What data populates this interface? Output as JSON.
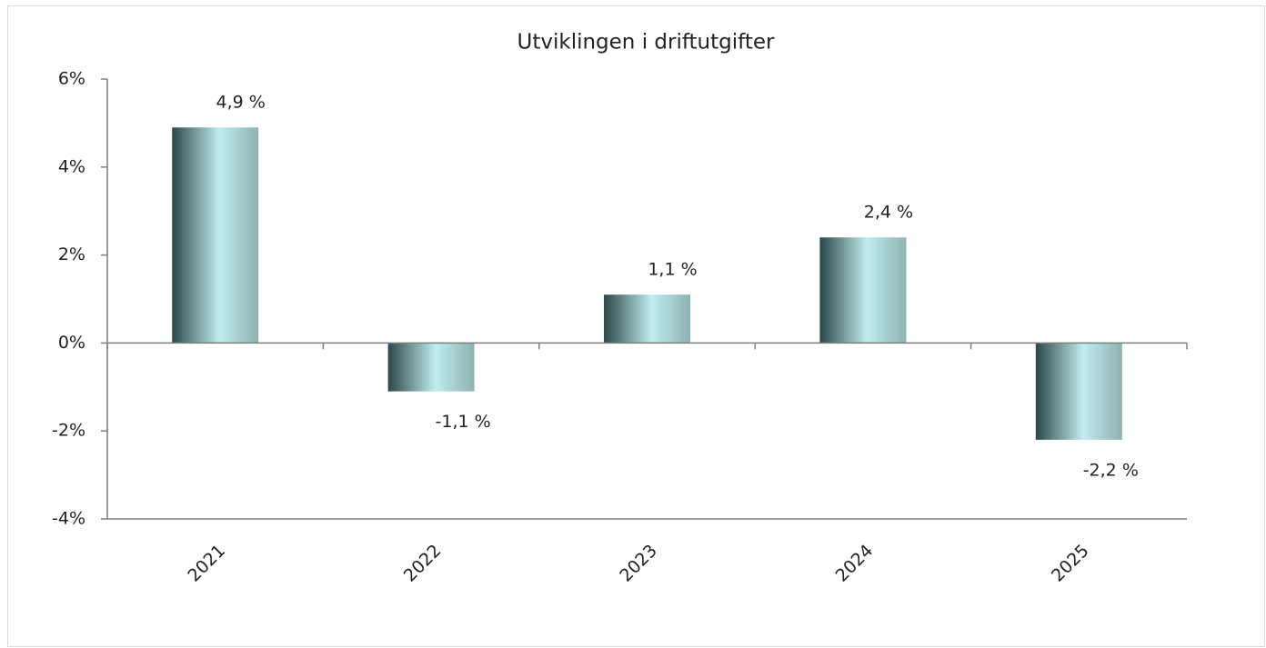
{
  "chart_data": {
    "type": "bar",
    "title": "Utviklingen i driftutgifter",
    "categories": [
      "2021",
      "2022",
      "2023",
      "2024",
      "2025"
    ],
    "values": [
      4.9,
      -1.1,
      1.1,
      2.4,
      -2.2
    ],
    "value_labels": [
      "4,9 %",
      "-1,1 %",
      "1,1 %",
      "2,4 %",
      "-2,2 %"
    ],
    "ylim": [
      -4,
      6
    ],
    "yticks": [
      {
        "value": -4,
        "label": "-4%"
      },
      {
        "value": -2,
        "label": "-2%"
      },
      {
        "value": 0,
        "label": "0%"
      },
      {
        "value": 2,
        "label": "2%"
      },
      {
        "value": 4,
        "label": "4%"
      },
      {
        "value": 6,
        "label": "6%"
      }
    ],
    "grid": false
  }
}
